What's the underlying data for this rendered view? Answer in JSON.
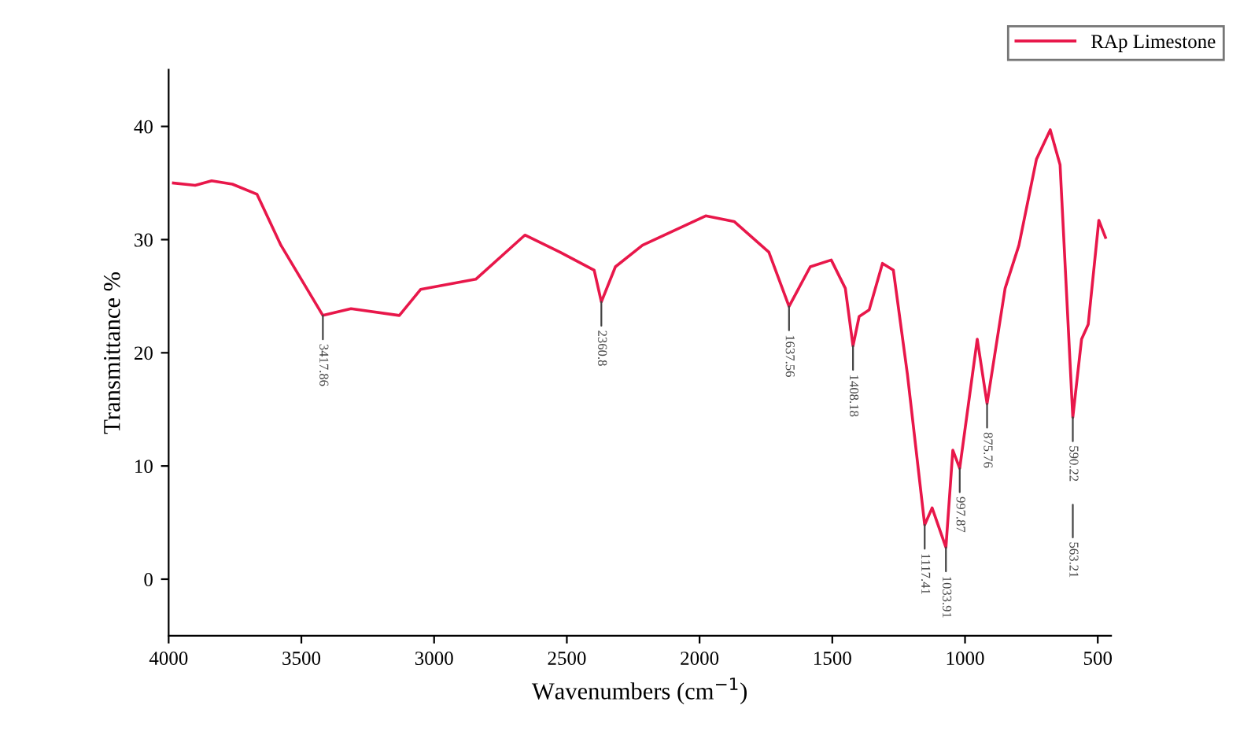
{
  "chart_data": {
    "type": "line",
    "xlabel": "Wavenumbers (cm$^{−1}$)",
    "ylabel": "Transmittance %",
    "xlim": [
      4000,
      450
    ],
    "ylim": [
      -5,
      45
    ],
    "xticks": [
      4000,
      3500,
      3000,
      2500,
      2000,
      1500,
      1000,
      500
    ],
    "yticks": [
      0,
      10,
      20,
      30,
      40
    ],
    "grid": false,
    "legend": "top right",
    "marker": "none",
    "line_style": "solid",
    "series": [
      {
        "name": "RAp Limestone",
        "color": "#e8174a",
        "x": [
          3982,
          3900,
          3838,
          3760,
          3667,
          3577,
          3419,
          3313,
          3131,
          3051,
          2843,
          2658,
          2526,
          2397,
          2370,
          2317,
          2215,
          1977,
          1870,
          1739,
          1663,
          1583,
          1504,
          1451,
          1422,
          1399,
          1361,
          1311,
          1270,
          1217,
          1152,
          1124,
          1072,
          1046,
          1020,
          954,
          917,
          849,
          797,
          731,
          679,
          642,
          594,
          561,
          536,
          496,
          471
        ],
        "values": [
          35.0,
          34.8,
          35.2,
          34.9,
          34.0,
          29.5,
          23.3,
          23.9,
          23.3,
          25.6,
          26.5,
          30.4,
          28.9,
          27.3,
          24.5,
          27.6,
          29.5,
          32.1,
          31.6,
          28.9,
          24.1,
          27.6,
          28.2,
          25.7,
          20.6,
          23.2,
          23.8,
          27.9,
          27.3,
          18.1,
          4.8,
          6.3,
          2.8,
          11.4,
          9.8,
          21.2,
          15.5,
          25.7,
          29.5,
          37.1,
          39.7,
          36.6,
          14.3,
          21.2,
          22.5,
          31.7,
          30.2
        ]
      }
    ],
    "annotations": [
      {
        "text": "3417.86",
        "x": 3419,
        "y": 23.3
      },
      {
        "text": "2360.8",
        "x": 2370,
        "y": 24.5
      },
      {
        "text": "1637.56",
        "x": 1663,
        "y": 24.1
      },
      {
        "text": "1408.18",
        "x": 1422,
        "y": 20.6
      },
      {
        "text": "1117.41",
        "x": 1152,
        "y": 4.8
      },
      {
        "text": "1033.91",
        "x": 1072,
        "y": 2.8
      },
      {
        "text": "997.87",
        "x": 1020,
        "y": 9.8
      },
      {
        "text": "875.76",
        "x": 917,
        "y": 15.5
      },
      {
        "text": "590.22",
        "x": 594,
        "y": 14.3
      },
      "563.21"
    ]
  }
}
